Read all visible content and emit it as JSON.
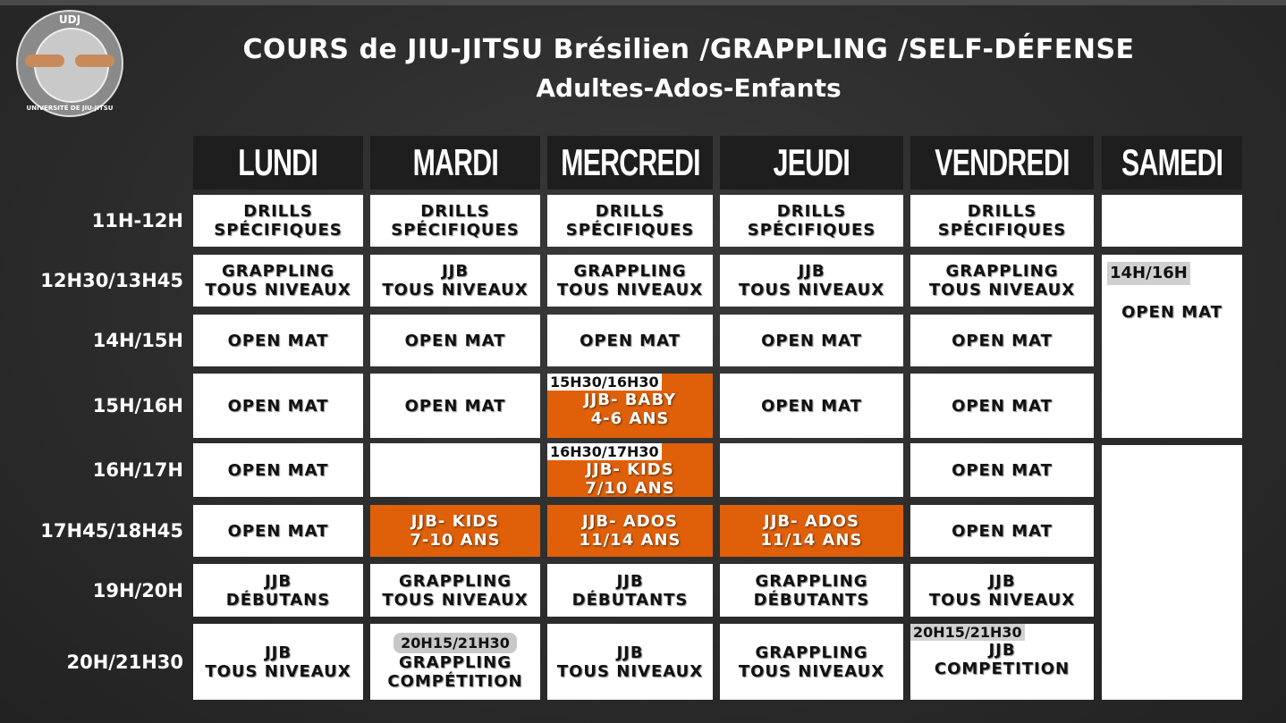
{
  "logo": {
    "top_text": "UDJ",
    "bottom_text": "UNIVERSITÉ DE JIU-JITSU"
  },
  "title": "COURS de JIU-JITSU Brésilien /GRAPPLING /SELF-DÉFENSE",
  "subtitle": "Adultes-Ados-Enfants",
  "colors": {
    "orange": "#e0600a",
    "background": "#2b2b2b",
    "header": "#1e1e1e"
  },
  "days": [
    "LUNDI",
    "MARDI",
    "MERCREDI",
    "JEUDI",
    "VENDREDI",
    "SAMEDI"
  ],
  "time_slots": [
    "11H-12H",
    "12H30/13H45",
    "14H/15H",
    "15H/16H",
    "16H/17H",
    "17H45/18H45",
    "19H/20H",
    "20H/21H30"
  ],
  "cells": [
    {
      "day": 0,
      "slot": 0,
      "lines": [
        "DRILLS",
        "SPÉCIFIQUES"
      ]
    },
    {
      "day": 1,
      "slot": 0,
      "lines": [
        "DRILLS",
        "SPÉCIFIQUES"
      ]
    },
    {
      "day": 2,
      "slot": 0,
      "lines": [
        "DRILLS",
        "SPÉCIFIQUES"
      ]
    },
    {
      "day": 3,
      "slot": 0,
      "lines": [
        "DRILLS",
        "SPÉCIFIQUES"
      ]
    },
    {
      "day": 4,
      "slot": 0,
      "lines": [
        "DRILLS",
        "SPÉCIFIQUES"
      ]
    },
    {
      "day": 5,
      "slot": 0,
      "lines": []
    },
    {
      "day": 0,
      "slot": 1,
      "lines": [
        "GRAPPLING",
        "TOUS NIVEAUX"
      ]
    },
    {
      "day": 1,
      "slot": 1,
      "lines": [
        "JJB",
        "TOUS NIVEAUX"
      ]
    },
    {
      "day": 2,
      "slot": 1,
      "lines": [
        "GRAPPLING",
        "TOUS NIVEAUX"
      ]
    },
    {
      "day": 3,
      "slot": 1,
      "lines": [
        "JJB",
        "TOUS NIVEAUX"
      ]
    },
    {
      "day": 4,
      "slot": 1,
      "lines": [
        "GRAPPLING",
        "TOUS NIVEAUX"
      ]
    },
    {
      "day": 5,
      "slot": 1,
      "span": 3,
      "time": "14H/16H",
      "lines": [
        "OPEN MAT"
      ]
    },
    {
      "day": 0,
      "slot": 2,
      "lines": [
        "OPEN MAT"
      ]
    },
    {
      "day": 1,
      "slot": 2,
      "lines": [
        "OPEN MAT"
      ]
    },
    {
      "day": 2,
      "slot": 2,
      "lines": [
        "OPEN MAT"
      ]
    },
    {
      "day": 3,
      "slot": 2,
      "lines": [
        "OPEN MAT"
      ]
    },
    {
      "day": 4,
      "slot": 2,
      "lines": [
        "OPEN MAT"
      ]
    },
    {
      "day": 0,
      "slot": 3,
      "lines": [
        "OPEN MAT"
      ]
    },
    {
      "day": 1,
      "slot": 3,
      "lines": [
        "OPEN MAT"
      ]
    },
    {
      "day": 2,
      "slot": 3,
      "highlight": true,
      "time": "15H30/16H30",
      "lines": [
        "JJB- BABY",
        "4-6 ANS"
      ]
    },
    {
      "day": 3,
      "slot": 3,
      "lines": [
        "OPEN MAT"
      ]
    },
    {
      "day": 4,
      "slot": 3,
      "lines": [
        "OPEN MAT"
      ]
    },
    {
      "day": 0,
      "slot": 4,
      "lines": [
        "OPEN MAT"
      ]
    },
    {
      "day": 1,
      "slot": 4,
      "lines": []
    },
    {
      "day": 2,
      "slot": 4,
      "highlight": true,
      "time": "16H30/17H30",
      "lines": [
        "JJB- KIDS",
        "7/10 ANS"
      ]
    },
    {
      "day": 3,
      "slot": 4,
      "lines": []
    },
    {
      "day": 4,
      "slot": 4,
      "lines": [
        "OPEN MAT"
      ]
    },
    {
      "day": 5,
      "slot": 4,
      "span": 4,
      "lines": []
    },
    {
      "day": 0,
      "slot": 5,
      "lines": [
        "OPEN MAT"
      ]
    },
    {
      "day": 1,
      "slot": 5,
      "highlight": true,
      "lines": [
        "JJB- KIDS",
        "7-10 ANS"
      ]
    },
    {
      "day": 2,
      "slot": 5,
      "highlight": true,
      "lines": [
        "JJB- ADOS",
        "11/14 ANS"
      ]
    },
    {
      "day": 3,
      "slot": 5,
      "highlight": true,
      "lines": [
        "JJB- ADOS",
        "11/14 ANS"
      ]
    },
    {
      "day": 4,
      "slot": 5,
      "lines": [
        "OPEN MAT"
      ]
    },
    {
      "day": 0,
      "slot": 6,
      "lines": [
        "JJB",
        "DÉBUTANS"
      ]
    },
    {
      "day": 1,
      "slot": 6,
      "lines": [
        "GRAPPLING",
        "TOUS NIVEAUX"
      ]
    },
    {
      "day": 2,
      "slot": 6,
      "lines": [
        "JJB",
        "DÉBUTANTS"
      ]
    },
    {
      "day": 3,
      "slot": 6,
      "lines": [
        "GRAPPLING",
        "DÉBUTANTS"
      ]
    },
    {
      "day": 4,
      "slot": 6,
      "lines": [
        "JJB",
        "TOUS NIVEAUX"
      ]
    },
    {
      "day": 0,
      "slot": 7,
      "lines": [
        "JJB",
        "TOUS NIVEAUX"
      ]
    },
    {
      "day": 1,
      "slot": 7,
      "time": "20H15/21H30",
      "time_style": "pill",
      "lines": [
        "GRAPPLING",
        "COMPÉTITION"
      ]
    },
    {
      "day": 2,
      "slot": 7,
      "lines": [
        "JJB",
        "TOUS NIVEAUX"
      ]
    },
    {
      "day": 3,
      "slot": 7,
      "lines": [
        "GRAPPLING",
        "TOUS NIVEAUX"
      ]
    },
    {
      "day": 4,
      "slot": 7,
      "time": "20H15/21H30",
      "time_style": "flat",
      "lines": [
        "JJB",
        "COMPETITION"
      ]
    }
  ]
}
